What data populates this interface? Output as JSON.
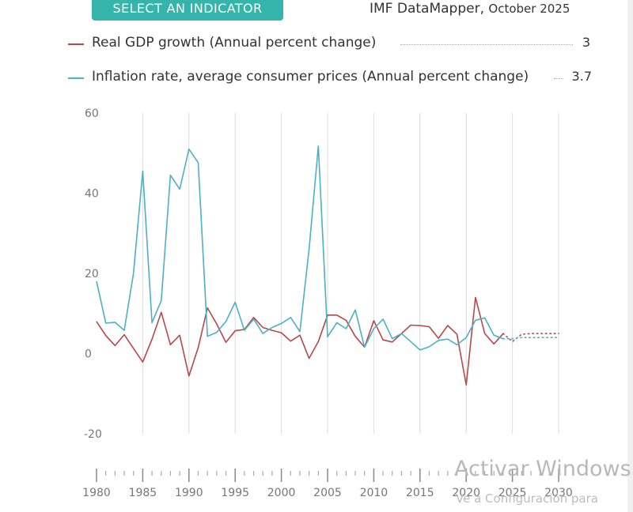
{
  "header": {
    "select_button": "SELECT AN INDICATOR",
    "source": "IMF DataMapper,",
    "date": "October 2025"
  },
  "legend": [
    {
      "name": "Real GDP growth (Annual percent change)",
      "value": "3",
      "color": "#b8474b"
    },
    {
      "name": "Inflation rate, average consumer prices (Annual percent change)",
      "value": "3.7",
      "color": "#4bb1c5"
    }
  ],
  "watermark": {
    "line1": "Activar Windows",
    "line2": "Ve a Configuración para"
  },
  "chart_data": {
    "type": "line",
    "y_ticks": [
      "60",
      "40",
      "20",
      "0",
      "-20"
    ],
    "x_ticks": [
      "1980",
      "1985",
      "1990",
      "1995",
      "2000",
      "2005",
      "2010",
      "2015",
      "2020",
      "2025",
      "2030"
    ],
    "ylim": [
      -20,
      60
    ],
    "xlim": [
      1980,
      2030
    ],
    "grid": "vertical",
    "series": [
      {
        "name": "Real GDP growth (Annual percent change)",
        "color": "#b8474b",
        "x": [
          1980,
          1981,
          1982,
          1983,
          1984,
          1985,
          1986,
          1987,
          1988,
          1989,
          1990,
          1991,
          1992,
          1993,
          1994,
          1995,
          1996,
          1997,
          1998,
          1999,
          2000,
          2001,
          2002,
          2003,
          2004,
          2005,
          2006,
          2007,
          2008,
          2009,
          2010,
          2011,
          2012,
          2013,
          2014,
          2015,
          2016,
          2017,
          2018,
          2019,
          2020,
          2021,
          2022,
          2023,
          2024
        ],
        "values": [
          8,
          4.5,
          2,
          4.7,
          1.3,
          -2.1,
          3.6,
          10.3,
          2.2,
          4.6,
          -5.6,
          1.5,
          11.4,
          7.4,
          2.8,
          5.7,
          6,
          9,
          6.5,
          5.8,
          5.2,
          3.1,
          4.6,
          -1.2,
          3,
          9.6,
          9.6,
          8.3,
          4.3,
          1.6,
          8.2,
          3.4,
          2.9,
          5,
          7.1,
          7,
          6.7,
          3.8,
          7,
          4.8,
          -7.8,
          14,
          5,
          2.4,
          5
        ],
        "proj_x": [
          2024,
          2025,
          2026,
          2027,
          2028,
          2029,
          2030
        ],
        "proj_values": [
          5,
          3,
          4.8,
          5,
          5,
          5,
          5
        ]
      },
      {
        "name": "Inflation rate, average consumer prices (Annual percent change)",
        "color": "#4bb1c5",
        "x": [
          1980,
          1981,
          1982,
          1983,
          1984,
          1985,
          1986,
          1987,
          1988,
          1989,
          1990,
          1991,
          1992,
          1993,
          1994,
          1995,
          1996,
          1997,
          1998,
          1999,
          2000,
          2001,
          2002,
          2003,
          2004,
          2005,
          2006,
          2007,
          2008,
          2009,
          2010,
          2011,
          2012,
          2013,
          2014,
          2015,
          2016,
          2017,
          2018,
          2019,
          2020,
          2021,
          2022,
          2023,
          2024
        ],
        "values": [
          18,
          7.6,
          7.8,
          5.8,
          20,
          45.5,
          7.7,
          13.2,
          44.5,
          41,
          51,
          47.6,
          4.3,
          5.3,
          8,
          12.8,
          5.8,
          8.6,
          5,
          6.5,
          7.5,
          9,
          5.5,
          26,
          51.7,
          4.2,
          7.7,
          6.2,
          10.9,
          1.6,
          6.2,
          8.6,
          3.7,
          5,
          3,
          0.9,
          1.7,
          3.3,
          3.6,
          2.2,
          4,
          8.3,
          8.9,
          4.6,
          3.7
        ],
        "proj_x": [
          2024,
          2025,
          2026,
          2027,
          2028,
          2029,
          2030
        ],
        "proj_values": [
          3.7,
          3.7,
          4,
          4,
          4,
          4,
          4
        ]
      }
    ]
  }
}
